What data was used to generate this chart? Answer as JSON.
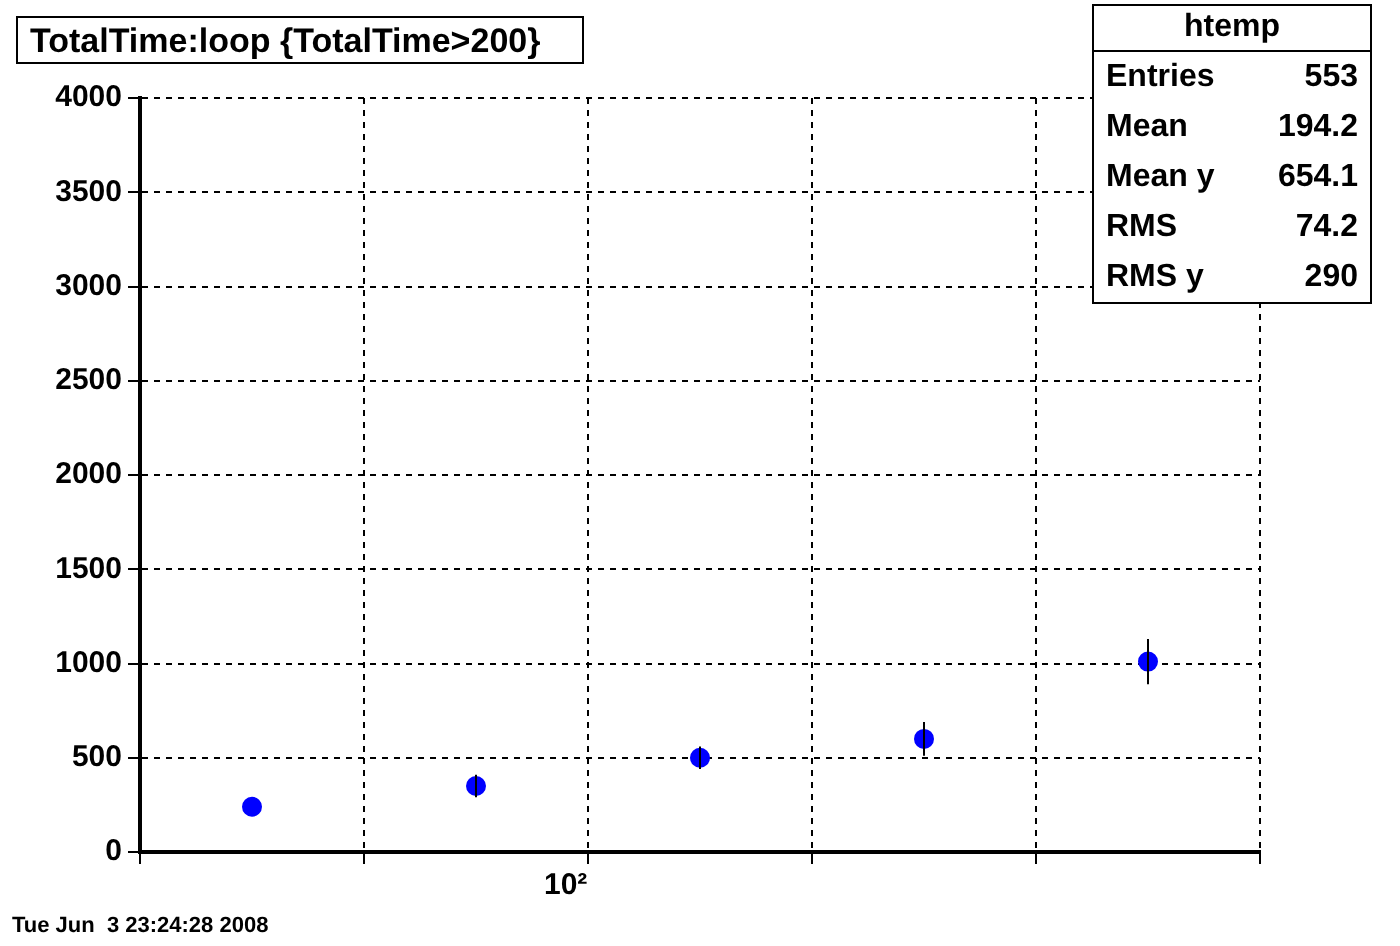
{
  "chart_data": {
    "type": "scatter",
    "title": "TotalTime:loop {TotalTime>200}",
    "categories": [
      null,
      null,
      null,
      null,
      null
    ],
    "series": [
      {
        "color": "#0000ff",
        "values": [
          240,
          350,
          500,
          600,
          1010
        ],
        "errors": [
          null,
          60,
          60,
          90,
          120
        ]
      }
    ],
    "ylim": [
      0,
      4000
    ],
    "yticks": [
      0,
      500,
      1000,
      1500,
      2000,
      2500,
      3000,
      3500,
      4000
    ],
    "grid": true,
    "marker": "circle",
    "annotations": [
      "10²",
      "htemp",
      "Entries",
      "553",
      "Mean",
      "194.2",
      "Mean y",
      "654.1",
      "RMS",
      "74.2",
      "RMS y",
      "290",
      "Tue Jun  3 23:24:28 2008"
    ]
  }
}
